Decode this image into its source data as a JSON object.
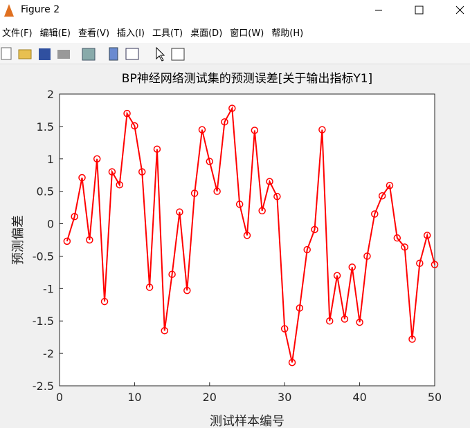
{
  "window": {
    "title": "Figure 2"
  },
  "menu": [
    "文件(F)",
    "编辑(E)",
    "查看(V)",
    "插入(I)",
    "工具(T)",
    "桌面(D)",
    "窗口(W)",
    "帮助(H)"
  ],
  "chart_data": {
    "type": "line",
    "title": "BP神经网络测试集的预测误差[关于输出指标Y1]",
    "xlabel": "测试样本编号",
    "ylabel": "预测偏差",
    "x": [
      1,
      2,
      3,
      4,
      5,
      6,
      7,
      8,
      9,
      10,
      11,
      12,
      13,
      14,
      15,
      16,
      17,
      18,
      19,
      20,
      21,
      22,
      23,
      24,
      25,
      26,
      27,
      28,
      29,
      30,
      31,
      32,
      33,
      34,
      35,
      36,
      37,
      38,
      39,
      40,
      41,
      42,
      43,
      44,
      45,
      46,
      47,
      48,
      49,
      50
    ],
    "values": [
      -0.27,
      0.11,
      0.71,
      -0.25,
      1.0,
      -1.2,
      0.8,
      0.6,
      1.7,
      1.51,
      0.8,
      -0.98,
      1.15,
      -1.65,
      -0.78,
      0.18,
      -1.03,
      0.47,
      1.45,
      0.96,
      0.5,
      1.57,
      1.78,
      0.3,
      -0.18,
      1.44,
      0.2,
      0.65,
      0.42,
      -1.62,
      -2.14,
      -1.3,
      -0.4,
      -0.09,
      1.45,
      -1.5,
      -0.8,
      -1.47,
      -0.67,
      -1.52,
      -0.5,
      0.15,
      0.43,
      0.59,
      -0.22,
      -0.36,
      -1.78,
      -0.61,
      -0.18,
      -0.63
    ],
    "color": "#ff0000",
    "marker": "o",
    "xlim": [
      0,
      50
    ],
    "xticks": [
      0,
      10,
      20,
      30,
      40,
      50
    ],
    "ylim": [
      -2.5,
      2
    ],
    "yticks": [
      -2.5,
      -2,
      -1.5,
      -1,
      -0.5,
      0,
      0.5,
      1,
      1.5,
      2
    ]
  }
}
